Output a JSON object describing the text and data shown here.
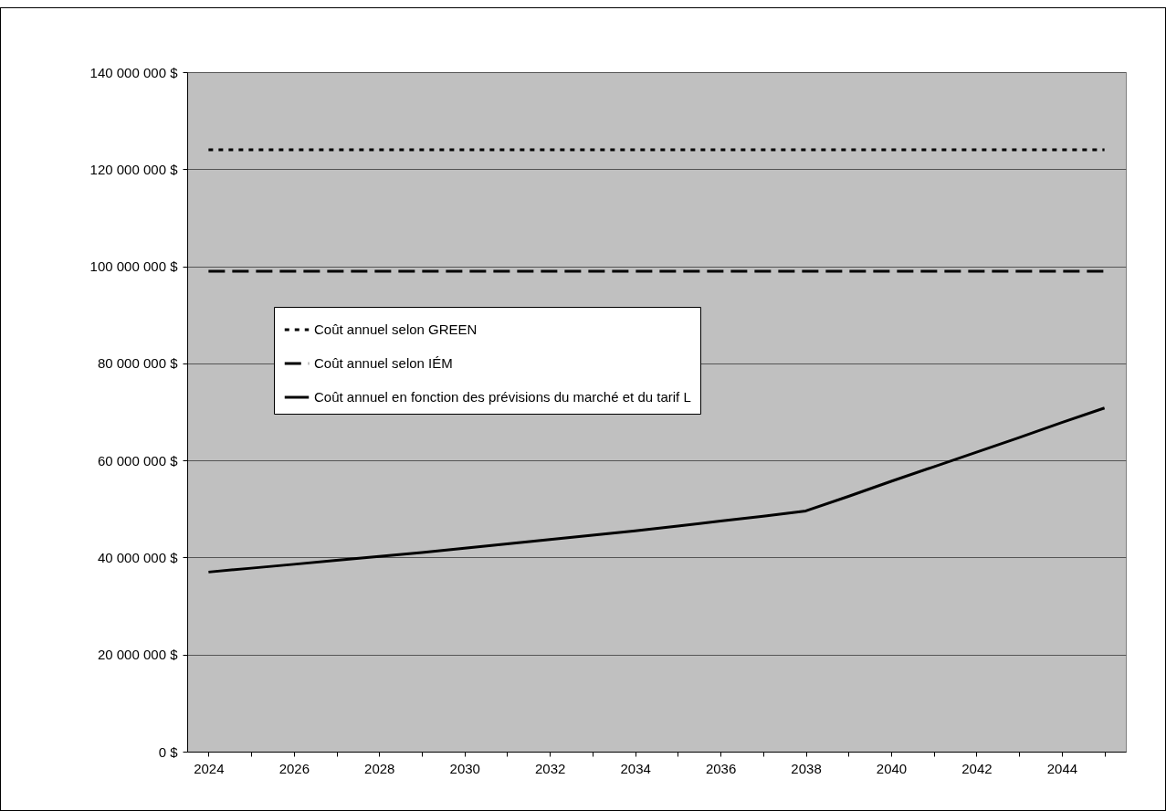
{
  "chart_data": {
    "type": "line",
    "categories": [
      "2024",
      null,
      "2026",
      null,
      "2028",
      null,
      "2030",
      null,
      "2032",
      null,
      "2034",
      null,
      "2036",
      null,
      "2038",
      null,
      "2040",
      null,
      "2042",
      null,
      "2044",
      null
    ],
    "series": [
      {
        "name": "Coût annuel selon GREEN",
        "color": "#000000",
        "line_style": "dotted",
        "values": [
          124000000,
          124000000,
          124000000,
          124000000,
          124000000,
          124000000,
          124000000,
          124000000,
          124000000,
          124000000,
          124000000,
          124000000,
          124000000,
          124000000,
          124000000,
          124000000,
          124000000,
          124000000,
          124000000,
          124000000,
          124000000,
          124000000
        ]
      },
      {
        "name": "Coût annuel selon IÉM",
        "color": "#000000",
        "line_style": "dashed",
        "values": [
          99000000,
          99000000,
          99000000,
          99000000,
          99000000,
          99000000,
          99000000,
          99000000,
          99000000,
          99000000,
          99000000,
          99000000,
          99000000,
          99000000,
          99000000,
          99000000,
          99000000,
          99000000,
          99000000,
          99000000,
          99000000,
          99000000
        ]
      },
      {
        "name": "Coût annuel en fonction des prévisions du marché et du tarif L",
        "color": "#000000",
        "line_style": "solid",
        "values": [
          37000000,
          37800000,
          38600000,
          39400000,
          40200000,
          41000000,
          41900000,
          42800000,
          43700000,
          44600000,
          45500000,
          46500000,
          47500000,
          48500000,
          49600000,
          52600000,
          55700000,
          58700000,
          61700000,
          64700000,
          67800000,
          70800000
        ]
      }
    ],
    "ylim": [
      0,
      140000000
    ],
    "yticks": [
      {
        "value": 0,
        "label": "0 $"
      },
      {
        "value": 20000000,
        "label": "20 000 000 $"
      },
      {
        "value": 40000000,
        "label": "40 000 000 $"
      },
      {
        "value": 60000000,
        "label": "60 000 000 $"
      },
      {
        "value": 80000000,
        "label": "80 000 000 $"
      },
      {
        "value": 100000000,
        "label": "100 000 000 $"
      },
      {
        "value": 120000000,
        "label": "120 000 000 $"
      },
      {
        "value": 140000000,
        "label": "140 000 000 $"
      }
    ],
    "grid": "y",
    "legend": "left",
    "marker": "none"
  }
}
